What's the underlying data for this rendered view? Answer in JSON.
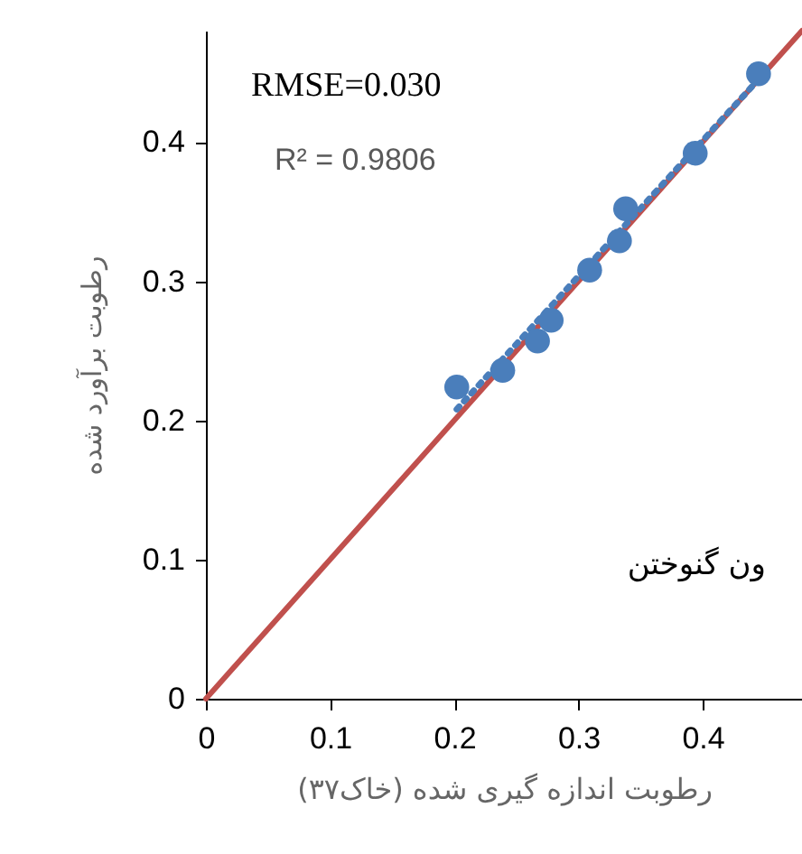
{
  "chart_data": {
    "type": "scatter",
    "xlabel": "رطوبت اندازه گیری شده (خاک۳۷)",
    "ylabel": "رطوبت برآورد شده",
    "xlim": [
      0,
      0.48
    ],
    "ylim": [
      0,
      0.48
    ],
    "xticks": [
      0,
      0.1,
      0.2,
      0.3,
      0.4
    ],
    "yticks": [
      0,
      0.1,
      0.2,
      0.3,
      0.4
    ],
    "grid": false,
    "marker": "circle",
    "series": [
      {
        "type": "line",
        "color": "#c0504d",
        "line_style": "solid",
        "marker": "none",
        "x": [
          0,
          0.48
        ],
        "values": [
          0,
          0.48
        ]
      },
      {
        "type": "line",
        "color": "#4a7ebb",
        "line_style": "dotted",
        "marker": "none",
        "x": [
          0.202,
          0.445
        ],
        "values": [
          0.208,
          0.445
        ]
      },
      {
        "color": "#4a7ebb",
        "x": [
          0.202,
          0.239,
          0.267,
          0.278,
          0.309,
          0.333,
          0.338,
          0.394,
          0.445
        ],
        "values": [
          0.224,
          0.236,
          0.257,
          0.272,
          0.308,
          0.329,
          0.352,
          0.392,
          0.449
        ]
      }
    ],
    "annotations": [
      "RMSE=0.030",
      "R² = 0.9806",
      "ون گنوختن"
    ]
  }
}
